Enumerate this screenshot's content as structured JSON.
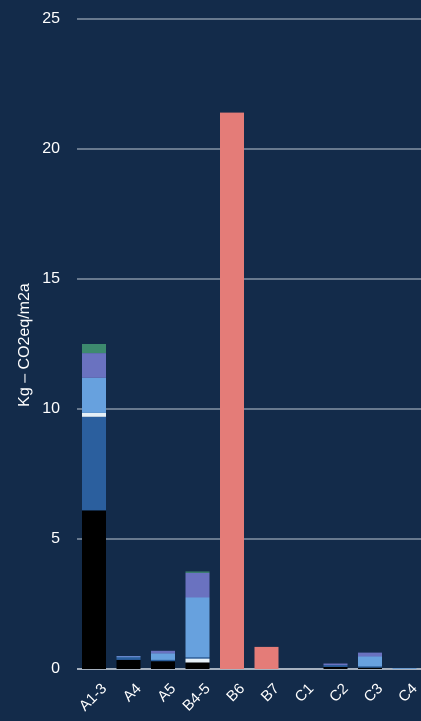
{
  "chart_data": {
    "type": "bar",
    "stacked": true,
    "ylabel": "Kg – CO2eq/m2a",
    "ylim": [
      0,
      25
    ],
    "yticks": [
      0,
      5,
      10,
      15,
      20,
      25
    ],
    "grid": true,
    "categories": [
      "A1-3",
      "A4",
      "A5",
      "B4-5",
      "B6",
      "B7",
      "C1",
      "C2",
      "C3",
      "C4"
    ],
    "series": [
      {
        "color": "#000000",
        "values": [
          6.1,
          0.35,
          0.3,
          0.25,
          0,
          0,
          0,
          0.08,
          0.05,
          0
        ]
      },
      {
        "color": "#e6f0f7",
        "values": [
          0,
          0,
          0,
          0.15,
          0,
          0,
          0,
          0,
          0,
          0
        ]
      },
      {
        "color": "#2b5f9e",
        "values": [
          3.6,
          0.1,
          0.05,
          0.05,
          0,
          0,
          0,
          0.07,
          0.05,
          0
        ]
      },
      {
        "color": "#e6f0f7",
        "values": [
          0.15,
          0,
          0,
          0,
          0,
          0,
          0,
          0,
          0,
          0
        ]
      },
      {
        "color": "#67a1de",
        "values": [
          1.35,
          0.03,
          0.25,
          2.3,
          0,
          0,
          0,
          0,
          0.38,
          0.03
        ]
      },
      {
        "color": "#6a72c0",
        "values": [
          0.95,
          0.02,
          0.1,
          0.95,
          0,
          0,
          0,
          0.06,
          0.15,
          0
        ]
      },
      {
        "color": "#3d8a6e",
        "values": [
          0.35,
          0,
          0,
          0.05,
          0,
          0,
          0,
          0,
          0,
          0
        ]
      },
      {
        "color": "#e47c78",
        "values": [
          0,
          0,
          0,
          0,
          21.4,
          0.85,
          0,
          0,
          0,
          0
        ]
      }
    ]
  }
}
